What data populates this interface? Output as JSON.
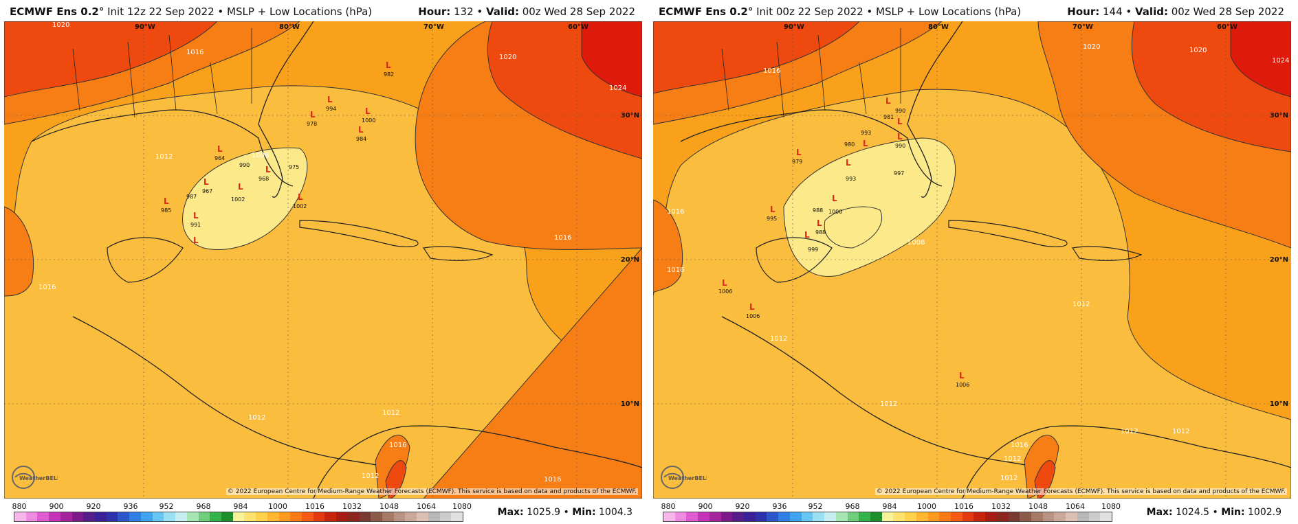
{
  "panels": [
    {
      "model": "ECMWF Ens 0.2",
      "deg": "°",
      "init_text": " Init 12z 22 Sep 2022 • MSLP + Low Locations (hPa)",
      "hour_label": "Hour:",
      "hour": " 132 • ",
      "valid_label": "Valid:",
      "valid": " 00z Wed 28 Sep 2022",
      "max_label": "Max:",
      "max": " 1025.9 • ",
      "min_label": "Min:",
      "min": " 1004.3",
      "isobar_labels": [
        "1020",
        "1016",
        "1012",
        "1008",
        "1016",
        "1020",
        "1024",
        "1016",
        "1012",
        "1016",
        "1012",
        "1012",
        "1016"
      ],
      "center_numbers": [
        "982",
        "994",
        "1000",
        "984",
        "964",
        "967",
        "985",
        "991",
        "987",
        "1002",
        "1002",
        "975",
        "968",
        "978",
        "990"
      ]
    },
    {
      "model": "ECMWF Ens 0.2",
      "deg": "°",
      "init_text": " Init 00z 22 Sep 2022 • MSLP + Low Locations (hPa)",
      "hour_label": "Hour:",
      "hour": " 144 • ",
      "valid_label": "Valid:",
      "valid": " 00z Wed 28 Sep 2022",
      "max_label": "Max:",
      "max": " 1024.5 • ",
      "min_label": "Min:",
      "min": " 1002.9",
      "isobar_labels": [
        "1020",
        "1016",
        "1016",
        "1020",
        "1024",
        "1016",
        "1012",
        "1012",
        "1008",
        "1012",
        "1012",
        "1016",
        "1012",
        "1012",
        "1012"
      ],
      "center_numbers": [
        "990",
        "981",
        "993",
        "990",
        "997",
        "979",
        "980",
        "995",
        "999",
        "993",
        "988",
        "1000",
        "988",
        "1006",
        "1006",
        "1006"
      ]
    }
  ],
  "lon_labels": [
    "90°W",
    "80°W",
    "70°W",
    "60°W"
  ],
  "lat_labels": [
    "30°N",
    "20°N",
    "10°N"
  ],
  "low_marker": "L",
  "copyright": "© 2022 European Centre for Medium-Range Weather Forecasts (ECMWF). This service is based on data and products of the ECMWF.",
  "logo_text": "WeatherBELL",
  "scale_ticks": [
    "880",
    "900",
    "920",
    "936",
    "952",
    "968",
    "984",
    "1000",
    "1016",
    "1032",
    "1048",
    "1064",
    "1080"
  ],
  "scale_colors": [
    "#f6b6ea",
    "#f08ce0",
    "#e05ad0",
    "#c832b8",
    "#a6249e",
    "#7c1a8a",
    "#561c8c",
    "#3a1f9a",
    "#2d31b0",
    "#2c55d0",
    "#2f7ee6",
    "#3ea6f0",
    "#66c6f4",
    "#9adff2",
    "#c7eef0",
    "#a7e6b4",
    "#6fcf7c",
    "#33b24a",
    "#1f8f2e",
    "#f7f39a",
    "#fbe36c",
    "#ffd24a",
    "#ffb830",
    "#ff9a20",
    "#ff7a12",
    "#f65a10",
    "#e23c0e",
    "#c8240c",
    "#a81a12",
    "#8c2420",
    "#7a3a34",
    "#8c5a4a",
    "#a47a66",
    "#b89484",
    "#caa89a",
    "#dbbfb2",
    "#b8b8b8",
    "#cccccc",
    "#e0e0e0"
  ],
  "colors": {
    "fill_low": "#fbe98a",
    "fill_mid": "#fbbd3e",
    "fill_1016": "#f9a11a",
    "fill_1020": "#f77d15",
    "fill_1024": "#ee4a0f",
    "fill_max": "#de1a0a",
    "low_marker": "#d72a1a"
  }
}
